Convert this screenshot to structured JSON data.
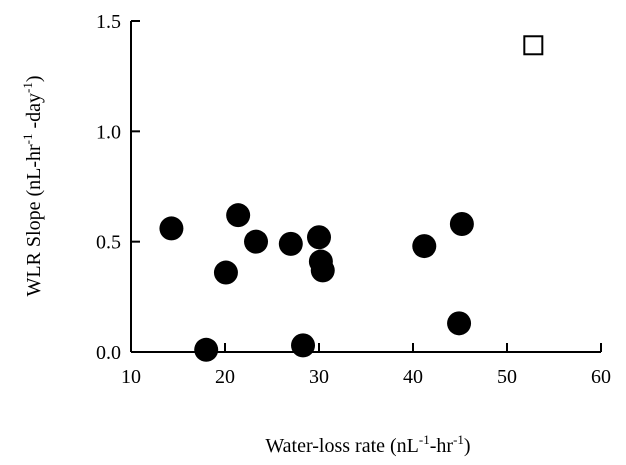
{
  "chart_data": {
    "type": "scatter",
    "xlabel": {
      "base": "Water-loss rate (nL",
      "sup1": "-1",
      "mid": "-hr",
      "sup2": "-1",
      "end": ")"
    },
    "ylabel": {
      "base": "WLR Slope (nL-hr",
      "sup1": "-1",
      "mid": " -day",
      "sup2": "-1",
      "end": ")"
    },
    "xlim": [
      10,
      60
    ],
    "ylim": [
      0,
      1.5
    ],
    "x_ticks": [
      10,
      20,
      30,
      40,
      50,
      60
    ],
    "x_tick_labels": [
      "10",
      "20",
      "30",
      "40",
      "50",
      "60"
    ],
    "y_ticks": [
      0,
      0.5,
      1.0,
      1.5
    ],
    "y_tick_labels": [
      "0.0",
      "0.5",
      "1.0",
      "1.5"
    ],
    "grid": false,
    "series": [
      {
        "marker": "filled-circle",
        "color": "#000000",
        "points": [
          {
            "x": 14.3,
            "y": 0.56
          },
          {
            "x": 18.0,
            "y": 0.01
          },
          {
            "x": 20.1,
            "y": 0.36
          },
          {
            "x": 21.4,
            "y": 0.62
          },
          {
            "x": 23.3,
            "y": 0.5
          },
          {
            "x": 27.0,
            "y": 0.49
          },
          {
            "x": 28.3,
            "y": 0.03
          },
          {
            "x": 30.0,
            "y": 0.52
          },
          {
            "x": 30.2,
            "y": 0.41
          },
          {
            "x": 30.4,
            "y": 0.37
          },
          {
            "x": 41.2,
            "y": 0.48
          },
          {
            "x": 44.9,
            "y": 0.13
          },
          {
            "x": 45.2,
            "y": 0.58
          }
        ]
      },
      {
        "marker": "open-square",
        "color": "#000000",
        "points": [
          {
            "x": 52.8,
            "y": 1.39
          }
        ]
      }
    ]
  }
}
